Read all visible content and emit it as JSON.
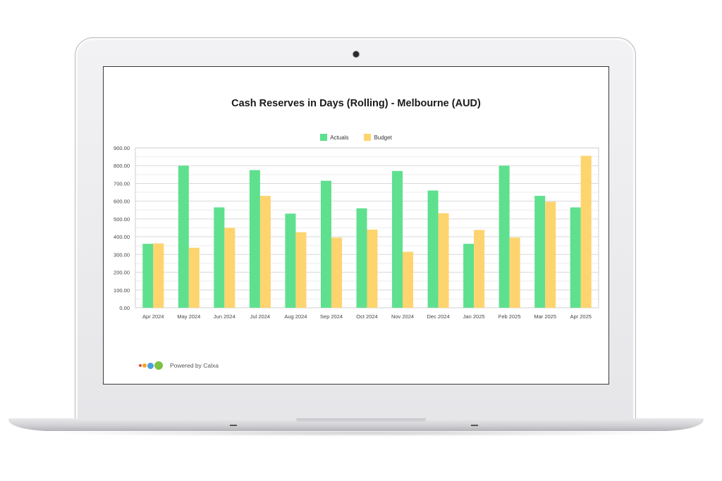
{
  "chart_data": {
    "type": "bar",
    "title": "Cash Reserves in Days (Rolling) - Melbourne (AUD)",
    "categories": [
      "Apr 2024",
      "May 2024",
      "Jun 2024",
      "Jul 2024",
      "Aug 2024",
      "Sep 2024",
      "Oct 2024",
      "Nov 2024",
      "Dec 2024",
      "Jan 2025",
      "Feb 2025",
      "Mar 2025",
      "Apr 2025"
    ],
    "series": [
      {
        "name": "Actuals",
        "color": "#5fe08f",
        "values": [
          360,
          800,
          565,
          775,
          530,
          715,
          560,
          770,
          660,
          360,
          800,
          630,
          565
        ]
      },
      {
        "name": "Budget",
        "color": "#fdd46e",
        "values": [
          362,
          338,
          450,
          630,
          425,
          395,
          440,
          315,
          532,
          438,
          395,
          597,
          855
        ]
      }
    ],
    "yticks": [
      "0.00",
      "100.00",
      "200.00",
      "300.00",
      "400.00",
      "500.00",
      "600.00",
      "700.00",
      "800.00",
      "900.00"
    ],
    "ylim": [
      0,
      900
    ],
    "grid": true,
    "legend_position": "top-center"
  },
  "legend": {
    "actuals": "Actuals",
    "budget": "Budget"
  },
  "footer": {
    "powered_by": "Powered by Calxa",
    "logo_colors": [
      "#e8443a",
      "#f5a623",
      "#4a9fe0",
      "#7dc242"
    ]
  }
}
